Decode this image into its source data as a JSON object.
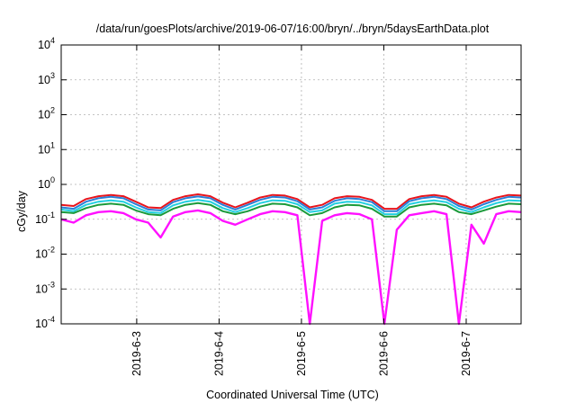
{
  "chart_data": {
    "type": "line",
    "title": "/data/run/goesPlots/archive/2019-06-07/16:00/bryn/../bryn/5daysEarthData.plot",
    "xlabel": "Coordinated Universal Time (UTC)",
    "ylabel": "cGy/day",
    "yscale": "log",
    "ylim": [
      0.0001,
      10000
    ],
    "xlim": [
      "2019-06-02T02:00",
      "2019-06-07T16:00"
    ],
    "grid": true,
    "x_ticks": [
      "2019-6-3",
      "2019-6-4",
      "2019-6-5",
      "2019-6-6",
      "2019-6-7"
    ],
    "y_ticks": [
      {
        "base": "10",
        "exp": "-4",
        "value": 0.0001
      },
      {
        "base": "10",
        "exp": "-3",
        "value": 0.001
      },
      {
        "base": "10",
        "exp": "-2",
        "value": 0.01
      },
      {
        "base": "10",
        "exp": "-1",
        "value": 0.1
      },
      {
        "base": "10",
        "exp": "0",
        "value": 1
      },
      {
        "base": "10",
        "exp": "1",
        "value": 10
      },
      {
        "base": "10",
        "exp": "2",
        "value": 100
      },
      {
        "base": "10",
        "exp": "3",
        "value": 1000
      },
      {
        "base": "10",
        "exp": "4",
        "value": 10000
      }
    ],
    "series": [
      {
        "color": "#e8141c",
        "values": [
          0.26,
          0.24,
          0.38,
          0.46,
          0.5,
          0.46,
          0.32,
          0.22,
          0.21,
          0.36,
          0.46,
          0.52,
          0.46,
          0.3,
          0.22,
          0.3,
          0.42,
          0.5,
          0.48,
          0.38,
          0.22,
          0.26,
          0.4,
          0.46,
          0.44,
          0.36,
          0.2,
          0.2,
          0.38,
          0.46,
          0.5,
          0.44,
          0.28,
          0.22,
          0.32,
          0.42,
          0.5,
          0.48
        ]
      },
      {
        "color": "#2a7fd6",
        "values": [
          0.22,
          0.2,
          0.32,
          0.4,
          0.44,
          0.4,
          0.27,
          0.19,
          0.18,
          0.31,
          0.4,
          0.45,
          0.4,
          0.26,
          0.19,
          0.26,
          0.36,
          0.44,
          0.42,
          0.33,
          0.19,
          0.22,
          0.34,
          0.4,
          0.38,
          0.31,
          0.17,
          0.17,
          0.33,
          0.4,
          0.44,
          0.38,
          0.24,
          0.19,
          0.27,
          0.36,
          0.44,
          0.42
        ]
      },
      {
        "color": "#22cfe0",
        "values": [
          0.19,
          0.17,
          0.26,
          0.32,
          0.35,
          0.32,
          0.22,
          0.16,
          0.15,
          0.25,
          0.32,
          0.36,
          0.32,
          0.21,
          0.16,
          0.21,
          0.29,
          0.35,
          0.34,
          0.27,
          0.16,
          0.18,
          0.28,
          0.32,
          0.31,
          0.25,
          0.14,
          0.14,
          0.27,
          0.32,
          0.35,
          0.31,
          0.2,
          0.16,
          0.22,
          0.29,
          0.35,
          0.34
        ]
      },
      {
        "color": "#1a9a3a",
        "values": [
          0.16,
          0.15,
          0.21,
          0.26,
          0.28,
          0.26,
          0.18,
          0.14,
          0.13,
          0.2,
          0.26,
          0.29,
          0.26,
          0.17,
          0.14,
          0.17,
          0.23,
          0.28,
          0.27,
          0.22,
          0.13,
          0.15,
          0.22,
          0.26,
          0.25,
          0.2,
          0.12,
          0.12,
          0.22,
          0.26,
          0.28,
          0.25,
          0.16,
          0.14,
          0.18,
          0.23,
          0.28,
          0.27
        ]
      },
      {
        "color": "#ff10ff",
        "values": [
          0.1,
          0.08,
          0.13,
          0.16,
          0.17,
          0.15,
          0.1,
          0.08,
          0.03,
          0.12,
          0.16,
          0.18,
          0.15,
          0.09,
          0.07,
          0.1,
          0.14,
          0.17,
          0.16,
          0.13,
          0.0001,
          0.09,
          0.13,
          0.15,
          0.14,
          0.1,
          0.0001,
          0.05,
          0.13,
          0.15,
          0.17,
          0.14,
          0.0001,
          0.07,
          0.02,
          0.14,
          0.17,
          0.16
        ]
      }
    ]
  }
}
